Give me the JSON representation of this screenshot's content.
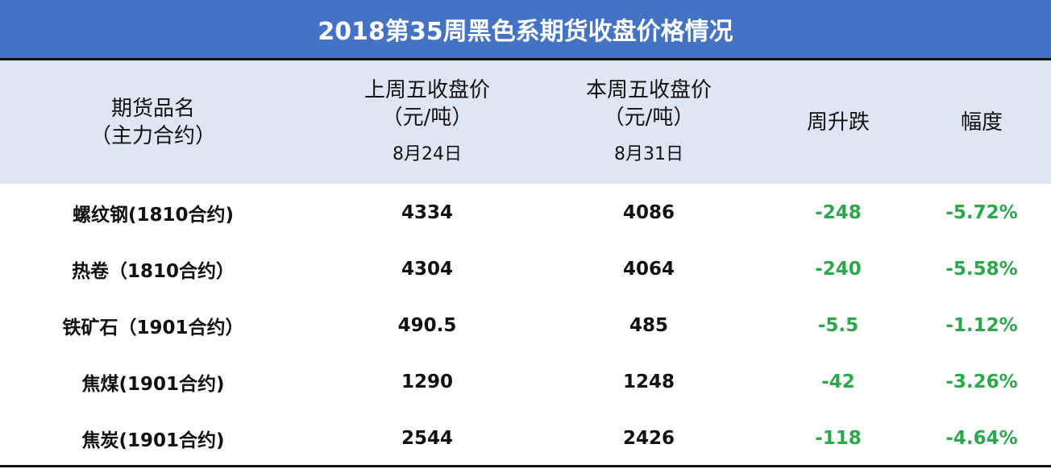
{
  "title": "2018第35周黑色系期货收盘价格情况",
  "table": {
    "header": [
      [
        "期货品名",
        "（主力合约）"
      ],
      [
        "上周五收盘价",
        "（元/吨）",
        "8月24日"
      ],
      [
        "本周五收盘价",
        "（元/吨）",
        "8月31日"
      ],
      [
        "周升跌"
      ],
      [
        "幅度"
      ]
    ],
    "rows": [
      [
        "螺纹钢(1810合约)",
        "4334",
        "4086",
        "-248",
        "-5.72%"
      ],
      [
        "热卷（1810合约）",
        "4304",
        "4064",
        "-240",
        "-5.58%"
      ],
      [
        "铁矿石（1901合约）",
        "490.5",
        "485",
        "-5.5",
        "-1.12%"
      ],
      [
        "焦煤(1901合约)",
        "1290",
        "1248",
        "-42",
        "-3.26%"
      ],
      [
        "焦炭(1901合约)",
        "2544",
        "2426",
        "-118",
        "-4.64%"
      ]
    ]
  }
}
